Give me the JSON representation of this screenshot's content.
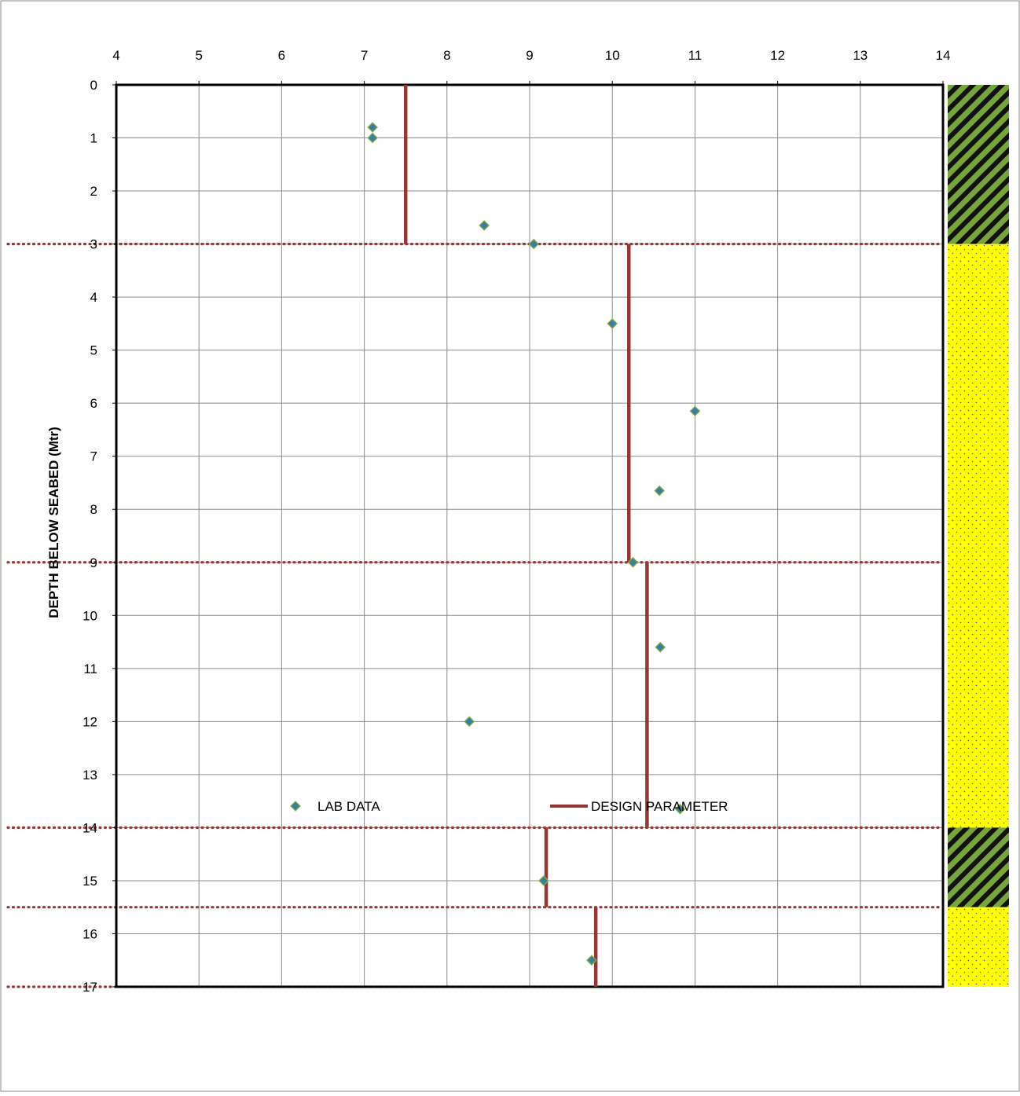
{
  "chart_data": {
    "type": "scatter",
    "title": "",
    "xlabel": "",
    "ylabel": "DEPTH BELOW SEABED (Mtr)",
    "xlim": [
      4,
      14
    ],
    "ylim": [
      0,
      17
    ],
    "y_inverted": true,
    "x_axis_position": "top",
    "grid": true,
    "xticks": [
      "4",
      "5",
      "6",
      "7",
      "8",
      "9",
      "10",
      "11",
      "12",
      "13",
      "14"
    ],
    "yticks": [
      "0",
      "1",
      "2",
      "3",
      "4",
      "5",
      "6",
      "7",
      "8",
      "9",
      "10",
      "11",
      "12",
      "13",
      "14",
      "15",
      "16",
      "17"
    ],
    "series": [
      {
        "name": "LAB DATA",
        "kind": "markers",
        "marker": "diamond",
        "color": "#3a7fa0",
        "edge_color": "#8db33a",
        "points": [
          {
            "x": 7.1,
            "y": 0.8
          },
          {
            "x": 7.1,
            "y": 1.0
          },
          {
            "x": 8.45,
            "y": 2.65
          },
          {
            "x": 9.05,
            "y": 3.0
          },
          {
            "x": 10.0,
            "y": 4.5
          },
          {
            "x": 11.0,
            "y": 6.15
          },
          {
            "x": 10.57,
            "y": 7.65
          },
          {
            "x": 10.25,
            "y": 9.0
          },
          {
            "x": 10.58,
            "y": 10.6
          },
          {
            "x": 8.27,
            "y": 12.0
          },
          {
            "x": 10.82,
            "y": 13.65
          },
          {
            "x": 9.17,
            "y": 15.0
          },
          {
            "x": 9.75,
            "y": 16.5
          }
        ]
      },
      {
        "name": "DESIGN PARAMETER",
        "kind": "segments",
        "color": "#953735",
        "segments": [
          {
            "x": 7.5,
            "y_from": 0,
            "y_to": 3
          },
          {
            "x": 10.2,
            "y_from": 3,
            "y_to": 9
          },
          {
            "x": 10.42,
            "y_from": 9,
            "y_to": 14
          },
          {
            "x": 9.2,
            "y_from": 14,
            "y_to": 15.5
          },
          {
            "x": 9.8,
            "y_from": 15.5,
            "y_to": 17
          }
        ]
      }
    ],
    "layer_boundaries": [
      3,
      9,
      14,
      15.5,
      17
    ],
    "boundary_color": "#953735",
    "soil_column": [
      {
        "from": 0,
        "to": 3,
        "pattern": "hatch",
        "colors": [
          "#76a53a",
          "#111111"
        ]
      },
      {
        "from": 3,
        "to": 14,
        "pattern": "dots",
        "colors": [
          "#ffff00",
          "#555555"
        ]
      },
      {
        "from": 14,
        "to": 15.5,
        "pattern": "hatch",
        "colors": [
          "#76a53a",
          "#111111"
        ]
      },
      {
        "from": 15.5,
        "to": 17,
        "pattern": "dots",
        "colors": [
          "#ffff00",
          "#555555"
        ]
      }
    ],
    "legend": {
      "placement": "bottom-center",
      "items": [
        {
          "label": "LAB DATA",
          "symbol": "diamond"
        },
        {
          "label": "DESIGN PARAMETER",
          "symbol": "line"
        }
      ]
    }
  }
}
